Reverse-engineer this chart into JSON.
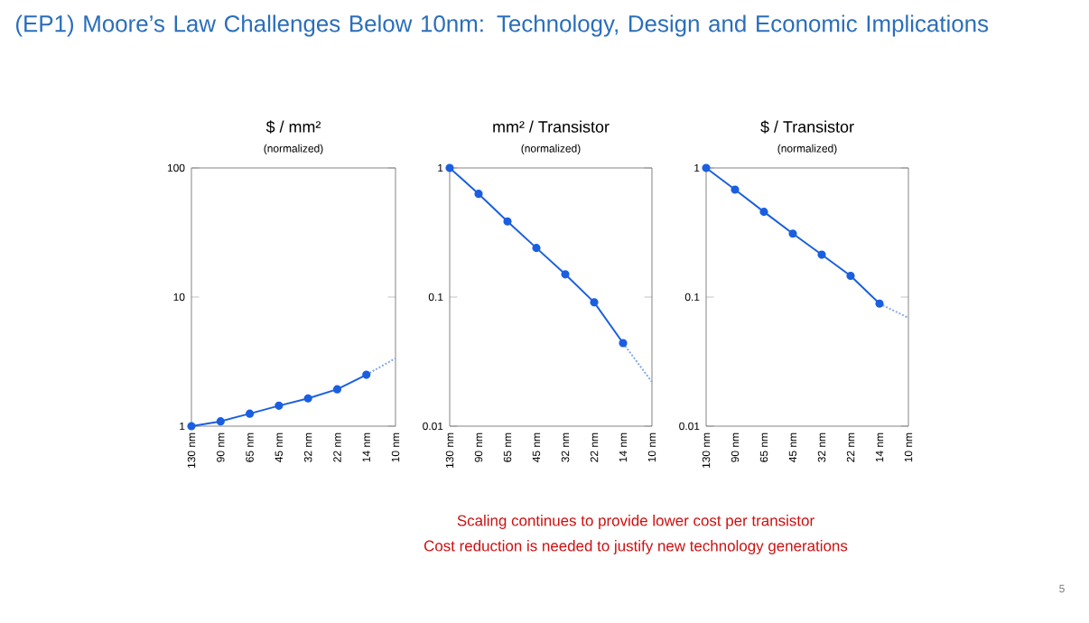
{
  "chart_data": [
    {
      "type": "other",
      "title": "(EP1) Moore’s Law Challenges Below 10nm: Technology, Design and Economic Implications",
      "annotations": [
        "Scaling continues to provide lower cost per transistor",
        "Cost reduction is needed to justify new technology generations",
        "5"
      ]
    },
    {
      "type": "line",
      "title": "$ / mm²",
      "subtitle": "(normalized)",
      "categories": [
        "130 nm",
        "90 nm",
        "65 nm",
        "45 nm",
        "32 nm",
        "22 nm",
        "14 nm",
        "10 nm"
      ],
      "log": "y",
      "ylim": [
        1,
        100
      ],
      "yticks": [
        1,
        10,
        100
      ],
      "marker": "circle",
      "series": [
        {
          "color": "#1a5fe0",
          "values": [
            1,
            1.09,
            1.25,
            1.44,
            1.64,
            1.93,
            2.5,
            null
          ]
        },
        {
          "color": "#7fa8e8",
          "line_style": "dotted",
          "marker": "none",
          "values": [
            null,
            null,
            null,
            null,
            null,
            null,
            2.5,
            3.35
          ]
        }
      ]
    },
    {
      "type": "line",
      "title": "mm² / Transistor",
      "subtitle": "(normalized)",
      "categories": [
        "130 nm",
        "90 nm",
        "65 nm",
        "45 nm",
        "32 nm",
        "22 nm",
        "14 nm",
        "10 nm"
      ],
      "log": "y",
      "ylim": [
        0.01,
        1
      ],
      "yticks": [
        0.01,
        0.1,
        1
      ],
      "marker": "circle",
      "series": [
        {
          "color": "#1a5fe0",
          "values": [
            1,
            0.63,
            0.385,
            0.24,
            0.15,
            0.091,
            0.044,
            null
          ]
        },
        {
          "color": "#7fa8e8",
          "line_style": "dotted",
          "marker": "none",
          "values": [
            null,
            null,
            null,
            null,
            null,
            null,
            0.044,
            0.022
          ]
        }
      ]
    },
    {
      "type": "line",
      "title": "$ / Transistor",
      "subtitle": "(normalized)",
      "categories": [
        "130 nm",
        "90 nm",
        "65 nm",
        "45 nm",
        "32 nm",
        "22 nm",
        "14 nm",
        "10 nm"
      ],
      "log": "y",
      "ylim": [
        0.01,
        1
      ],
      "yticks": [
        0.01,
        0.1,
        1
      ],
      "marker": "circle",
      "series": [
        {
          "color": "#1a5fe0",
          "values": [
            1,
            0.68,
            0.457,
            0.31,
            0.213,
            0.146,
            0.089,
            null
          ]
        },
        {
          "color": "#7fa8e8",
          "line_style": "dotted",
          "marker": "none",
          "values": [
            null,
            null,
            null,
            null,
            null,
            null,
            0.089,
            0.069
          ]
        }
      ]
    }
  ]
}
